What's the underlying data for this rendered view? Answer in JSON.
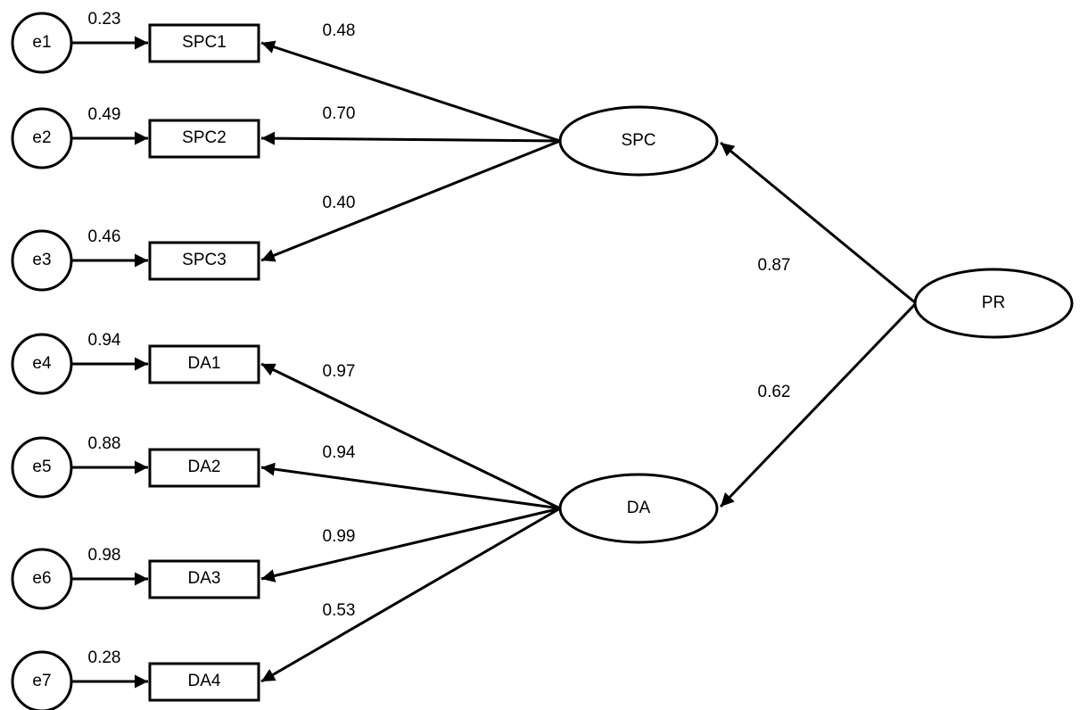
{
  "errors": [
    {
      "label": "e1",
      "weight": "0.23"
    },
    {
      "label": "e2",
      "weight": "0.49"
    },
    {
      "label": "e3",
      "weight": "0.46"
    },
    {
      "label": "e4",
      "weight": "0.94"
    },
    {
      "label": "e5",
      "weight": "0.88"
    },
    {
      "label": "e6",
      "weight": "0.98"
    },
    {
      "label": "e7",
      "weight": "0.28"
    }
  ],
  "indicators": [
    {
      "label": "SPC1",
      "loading": "0.48"
    },
    {
      "label": "SPC2",
      "loading": "0.70"
    },
    {
      "label": "SPC3",
      "loading": "0.40"
    },
    {
      "label": "DA1",
      "loading": "0.97"
    },
    {
      "label": "DA2",
      "loading": "0.94"
    },
    {
      "label": "DA3",
      "loading": "0.99"
    },
    {
      "label": "DA4",
      "loading": "0.53"
    }
  ],
  "factors": [
    {
      "label": "SPC",
      "path": "0.87"
    },
    {
      "label": "DA",
      "path": "0.62"
    },
    {
      "label": "PR"
    }
  ]
}
